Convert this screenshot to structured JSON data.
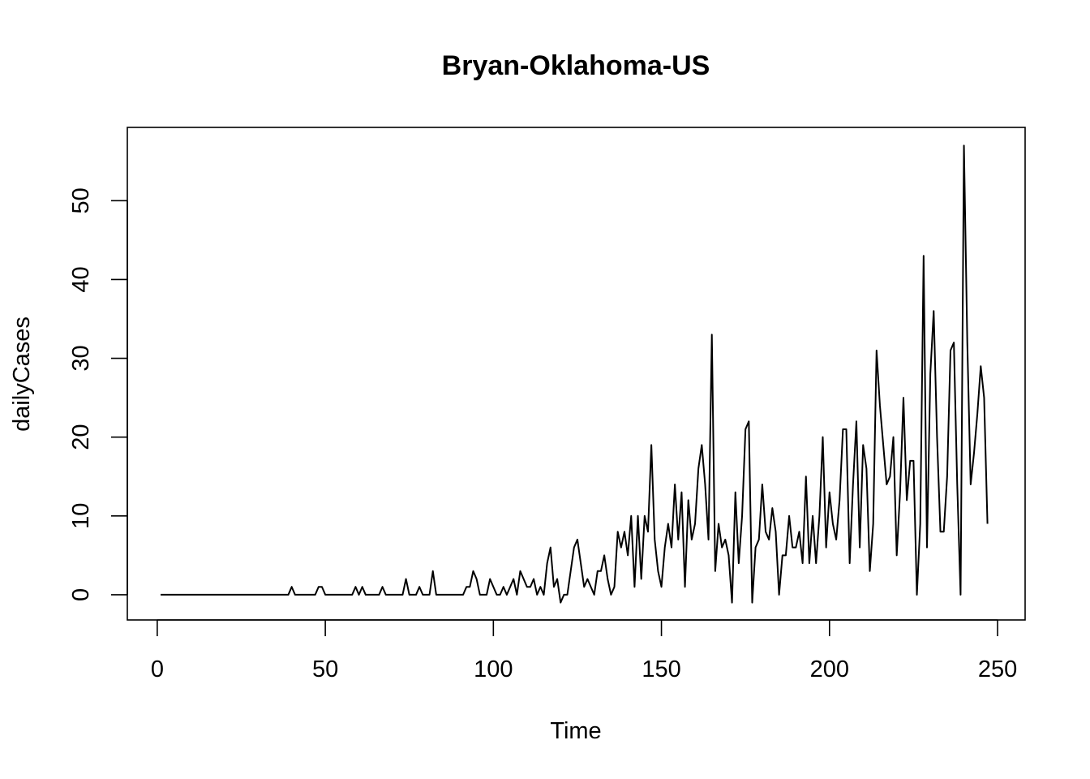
{
  "chart_data": {
    "type": "line",
    "title": "Bryan-Oklahoma-US",
    "xlabel": "Time",
    "ylabel": "dailyCases",
    "xlim": [
      -8.9,
      258.2
    ],
    "ylim": [
      -3.2,
      59.3
    ],
    "xticks": [
      0,
      50,
      100,
      150,
      200,
      250
    ],
    "yticks": [
      0,
      10,
      20,
      30,
      40,
      50
    ],
    "grid": false,
    "series": [
      {
        "x_start": 1,
        "values": [
          0,
          0,
          0,
          0,
          0,
          0,
          0,
          0,
          0,
          0,
          0,
          0,
          0,
          0,
          0,
          0,
          0,
          0,
          0,
          0,
          0,
          0,
          0,
          0,
          0,
          0,
          0,
          0,
          0,
          0,
          0,
          0,
          0,
          0,
          0,
          0,
          0,
          0,
          0,
          1,
          0,
          0,
          0,
          0,
          0,
          0,
          0,
          1,
          1,
          0,
          0,
          0,
          0,
          0,
          0,
          0,
          0,
          0,
          1,
          0,
          1,
          0,
          0,
          0,
          0,
          0,
          1,
          0,
          0,
          0,
          0,
          0,
          0,
          2,
          0,
          0,
          0,
          1,
          0,
          0,
          0,
          3,
          0,
          0,
          0,
          0,
          0,
          0,
          0,
          0,
          0,
          1,
          1,
          3,
          2,
          0,
          0,
          0,
          2,
          1,
          0,
          0,
          1,
          0,
          1,
          2,
          0,
          3,
          2,
          1,
          1,
          2,
          0,
          1,
          0,
          4,
          6,
          1,
          2,
          -1,
          0,
          0,
          3,
          6,
          7,
          4,
          1,
          2,
          1,
          0,
          3,
          3,
          5,
          2,
          0,
          1,
          8,
          6,
          8,
          5,
          10,
          1,
          10,
          2,
          10,
          8,
          19,
          7,
          3,
          1,
          6,
          9,
          6,
          14,
          7,
          13,
          1,
          12,
          7,
          9,
          16,
          19,
          14,
          7,
          33,
          3,
          9,
          6,
          7,
          5,
          -1,
          13,
          4,
          10,
          21,
          22,
          -1,
          6,
          7,
          14,
          8,
          7,
          11,
          8,
          0,
          5,
          5,
          10,
          6,
          6,
          8,
          4,
          15,
          4,
          10,
          4,
          10,
          20,
          6,
          13,
          9,
          7,
          12,
          21,
          21,
          4,
          14,
          22,
          6,
          19,
          16,
          3,
          9,
          31,
          24,
          19,
          14,
          15,
          20,
          5,
          13,
          25,
          12,
          17,
          17,
          0,
          9,
          43,
          6,
          28,
          36,
          20,
          8,
          8,
          15,
          31,
          32,
          14,
          0,
          57,
          32,
          14,
          18,
          23,
          29,
          25,
          9
        ]
      }
    ]
  }
}
